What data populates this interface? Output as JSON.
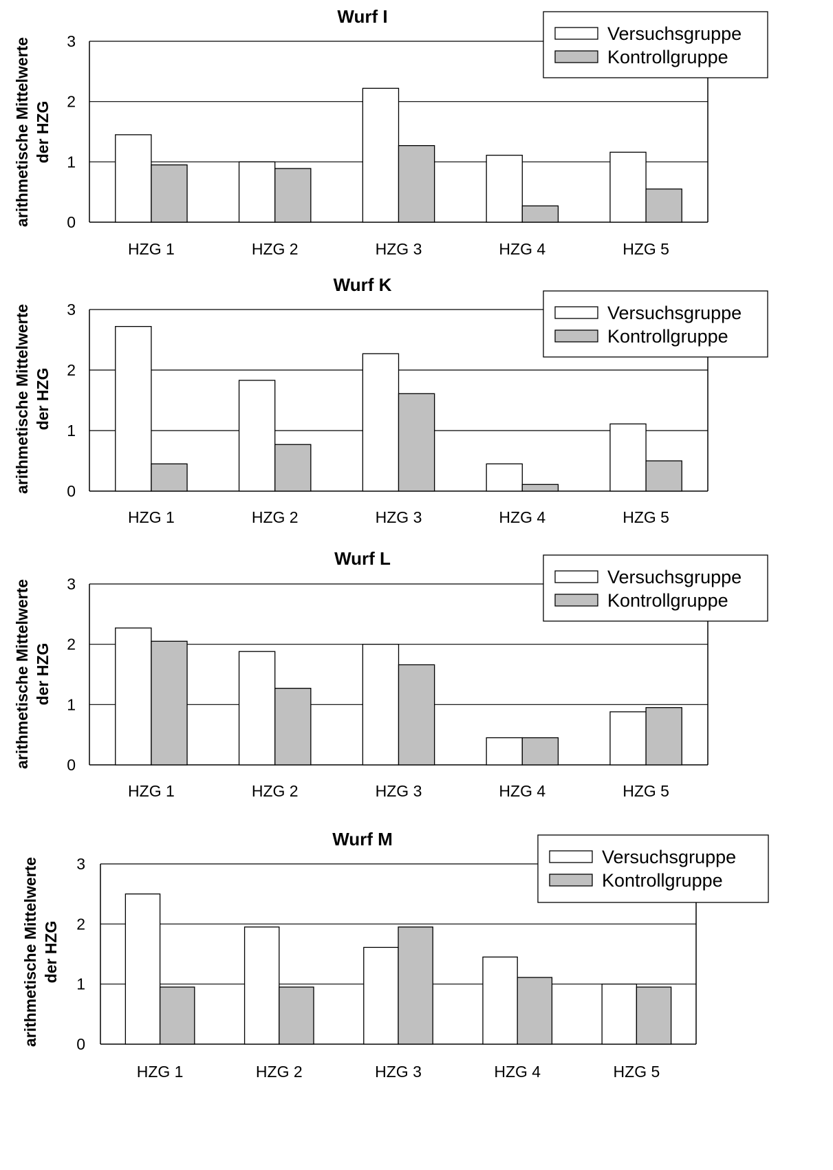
{
  "chart_data": [
    {
      "type": "bar",
      "title": "Wurf I",
      "ylabel": [
        "arithmetische Mittelwerte",
        "der HZG"
      ],
      "xlabel": "",
      "categories": [
        "HZG 1",
        "HZG 2",
        "HZG 3",
        "HZG 4",
        "HZG 5"
      ],
      "series": [
        {
          "name": "Versuchsgruppe",
          "values": [
            1.45,
            1.0,
            2.22,
            1.11,
            1.16
          ],
          "color": "#ffffff"
        },
        {
          "name": "Kontrollgruppe",
          "values": [
            0.95,
            0.89,
            1.27,
            0.27,
            0.55
          ],
          "color": "#c0c0c0"
        }
      ],
      "ylim": [
        0,
        3
      ],
      "yticks": [
        "0",
        "1",
        "2",
        "3"
      ],
      "grid": true,
      "legend": "top-right"
    },
    {
      "type": "bar",
      "title": "Wurf K",
      "ylabel": [
        "arithmetische Mittelwerte",
        "der HZG"
      ],
      "xlabel": "",
      "categories": [
        "HZG 1",
        "HZG 2",
        "HZG 3",
        "HZG 4",
        "HZG 5"
      ],
      "series": [
        {
          "name": "Versuchsgruppe",
          "values": [
            2.72,
            1.83,
            2.27,
            0.45,
            1.11
          ],
          "color": "#ffffff"
        },
        {
          "name": "Kontrollgruppe",
          "values": [
            0.45,
            0.77,
            1.61,
            0.11,
            0.5
          ],
          "color": "#c0c0c0"
        }
      ],
      "ylim": [
        0,
        3
      ],
      "yticks": [
        "0",
        "1",
        "2",
        "3"
      ],
      "grid": true,
      "legend": "top-right"
    },
    {
      "type": "bar",
      "title": "Wurf L",
      "ylabel": [
        "arithmetische Mittelwerte",
        "der HZG"
      ],
      "xlabel": "",
      "categories": [
        "HZG 1",
        "HZG 2",
        "HZG 3",
        "HZG 4",
        "HZG 5"
      ],
      "series": [
        {
          "name": "Versuchsgruppe",
          "values": [
            2.27,
            1.88,
            2.0,
            0.45,
            0.88
          ],
          "color": "#ffffff"
        },
        {
          "name": "Kontrollgruppe",
          "values": [
            2.05,
            1.27,
            1.66,
            0.45,
            0.95
          ],
          "color": "#c0c0c0"
        }
      ],
      "ylim": [
        0,
        3
      ],
      "yticks": [
        "0",
        "1",
        "2",
        "3"
      ],
      "grid": true,
      "legend": "top-right"
    },
    {
      "type": "bar",
      "title": "Wurf M",
      "ylabel": [
        "arithmetische Mittelwerte",
        "der HZG"
      ],
      "xlabel": "",
      "categories": [
        "HZG 1",
        "HZG 2",
        "HZG 3",
        "HZG 4",
        "HZG 5"
      ],
      "series": [
        {
          "name": "Versuchsgruppe",
          "values": [
            2.5,
            1.95,
            1.61,
            1.45,
            1.0
          ],
          "color": "#ffffff"
        },
        {
          "name": "Kontrollgruppe",
          "values": [
            0.95,
            0.95,
            1.95,
            1.11,
            0.95
          ],
          "color": "#c0c0c0"
        }
      ],
      "ylim": [
        0,
        3
      ],
      "yticks": [
        "0",
        "1",
        "2",
        "3"
      ],
      "grid": true,
      "legend": "top-right"
    }
  ]
}
